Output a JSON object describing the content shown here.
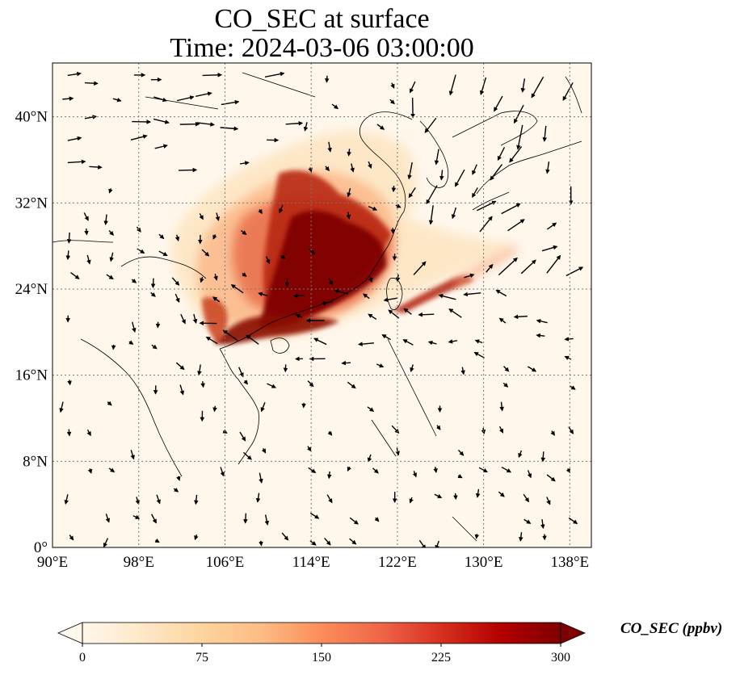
{
  "title_line1": "CO_SEC at surface",
  "title_line2": "Time: 2024-03-06 03:00:00",
  "lat_ticks": [
    {
      "deg": 40,
      "label": "40°N"
    },
    {
      "deg": 32,
      "label": "32°N"
    },
    {
      "deg": 24,
      "label": "24°N"
    },
    {
      "deg": 16,
      "label": "16°N"
    },
    {
      "deg": 8,
      "label": "8°N"
    },
    {
      "deg": 0,
      "label": "0°"
    }
  ],
  "lon_ticks": [
    {
      "deg": 90,
      "label": "90°E"
    },
    {
      "deg": 98,
      "label": "98°E"
    },
    {
      "deg": 106,
      "label": "106°E"
    },
    {
      "deg": 114,
      "label": "114°E"
    },
    {
      "deg": 122,
      "label": "122°E"
    },
    {
      "deg": 130,
      "label": "130°E"
    },
    {
      "deg": 138,
      "label": "138°E"
    }
  ],
  "extent": {
    "lon_min": 90,
    "lon_max": 140,
    "lat_min": 0,
    "lat_max": 45
  },
  "colorbar": {
    "label": "CO_SEC (ppbv)",
    "min": 0,
    "max": 300,
    "ticks": [
      {
        "value": 0,
        "label": "0"
      },
      {
        "value": 75,
        "label": "75"
      },
      {
        "value": 150,
        "label": "150"
      },
      {
        "value": 225,
        "label": "225"
      },
      {
        "value": 300,
        "label": "300"
      }
    ],
    "colors": [
      "#fff7ec",
      "#fee8c8",
      "#fdd49e",
      "#fdbb84",
      "#fc8d59",
      "#ef6548",
      "#d7301f",
      "#b30000",
      "#7f0000"
    ]
  },
  "colors": {
    "background_field": "#fff7ec",
    "grid": "#777777",
    "coast": "#000000"
  }
}
